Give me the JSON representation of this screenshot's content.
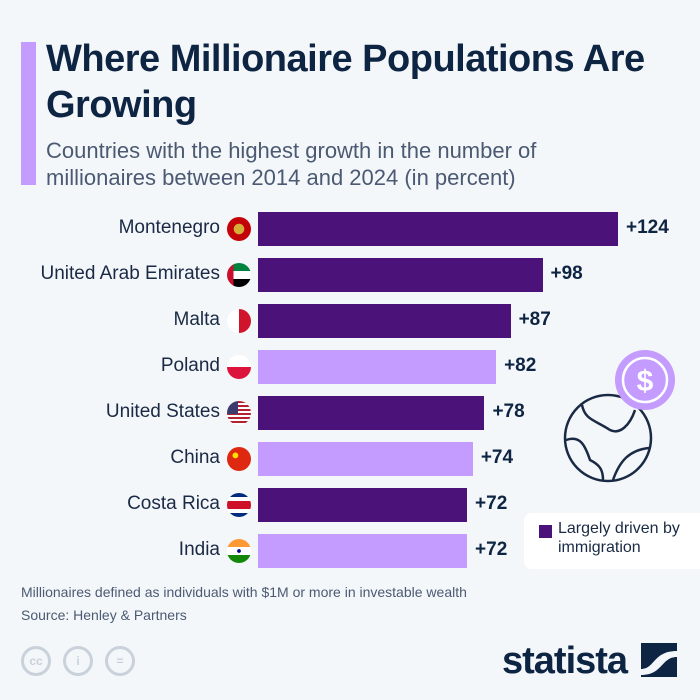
{
  "chart_data": {
    "type": "bar",
    "orientation": "horizontal",
    "title": "Where Millionaire Populations Are Growing",
    "subtitle": "Countries with the highest growth in the number of millionaires between 2014 and 2024 (in percent)",
    "categories": [
      "Montenegro",
      "United Arab Emirates",
      "Malta",
      "Poland",
      "United States",
      "China",
      "Costa Rica",
      "India"
    ],
    "values": [
      124,
      98,
      87,
      82,
      78,
      74,
      72,
      72
    ],
    "value_labels": [
      "+124",
      "+98",
      "+87",
      "+82",
      "+78",
      "+74",
      "+72",
      "+72"
    ],
    "driven_by_immigration": [
      true,
      true,
      true,
      false,
      true,
      false,
      true,
      false
    ],
    "xlim": [
      0,
      124
    ],
    "grid": false,
    "legend": {
      "label": "Largely driven by immigration",
      "placement": "bottom-right"
    },
    "colors": {
      "immigration": "#4b1379",
      "other": "#c49bff"
    }
  },
  "notes": {
    "definition": "Millionaires defined as individuals with $1M or more in investable wealth",
    "source": "Source: Henley & Partners"
  },
  "brand": {
    "logo": "statista",
    "license_icons": [
      "cc-icon",
      "by-icon",
      "nd-icon"
    ]
  }
}
